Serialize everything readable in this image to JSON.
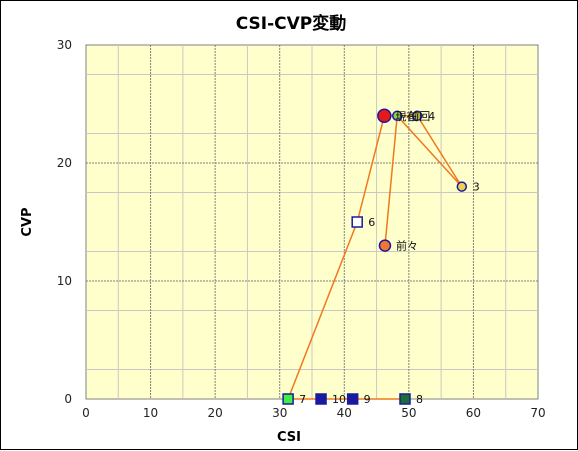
{
  "chart_data": {
    "type": "scatter",
    "title": "CSI-CVP変動",
    "xlabel": "CSI",
    "ylabel": "CVP",
    "xlim": [
      0,
      70
    ],
    "ylim": [
      0,
      30
    ],
    "xticks": [
      0,
      10,
      20,
      30,
      40,
      50,
      60,
      70
    ],
    "yticks": [
      0,
      10,
      20,
      30
    ],
    "grid": true,
    "colors": {
      "plot_background": "#ffffcc",
      "grid_major": "#808080",
      "grid_minor": "#c8c8c8",
      "line": "#f07820",
      "marker_edge": "#1a1aa0"
    },
    "line_order": [
      "前々",
      "前回",
      "3",
      "4",
      "現在",
      "6",
      "7",
      "10",
      "9",
      "8"
    ],
    "points": [
      {
        "label": "前々",
        "x": 46.3,
        "y": 13.0,
        "marker": "circle",
        "fill": "#f07830",
        "size": 11
      },
      {
        "label": "前回",
        "x": 48.2,
        "y": 24.0,
        "marker": "circle",
        "fill": "#98c848",
        "size": 9
      },
      {
        "label": "3",
        "x": 58.2,
        "y": 18.0,
        "marker": "circle",
        "fill": "#f0d050",
        "size": 9
      },
      {
        "label": "4",
        "x": 51.3,
        "y": 24.0,
        "marker": "circle",
        "fill": "#a8b038",
        "size": 9
      },
      {
        "label": "現在",
        "x": 46.2,
        "y": 24.0,
        "marker": "circle",
        "fill": "#e81818",
        "size": 13
      },
      {
        "label": "6",
        "x": 42.0,
        "y": 15.0,
        "marker": "square",
        "fill": "#ffffff",
        "size": 10
      },
      {
        "label": "7",
        "x": 31.3,
        "y": 0.0,
        "marker": "square",
        "fill": "#40f040",
        "size": 10
      },
      {
        "label": "10",
        "x": 36.4,
        "y": 0.0,
        "marker": "square",
        "fill": "#1a1aa0",
        "size": 10
      },
      {
        "label": "9",
        "x": 41.3,
        "y": 0.0,
        "marker": "square",
        "fill": "#1a1aa0",
        "size": 10
      },
      {
        "label": "8",
        "x": 49.4,
        "y": 0.0,
        "marker": "square",
        "fill": "#1a7030",
        "size": 10
      }
    ]
  }
}
